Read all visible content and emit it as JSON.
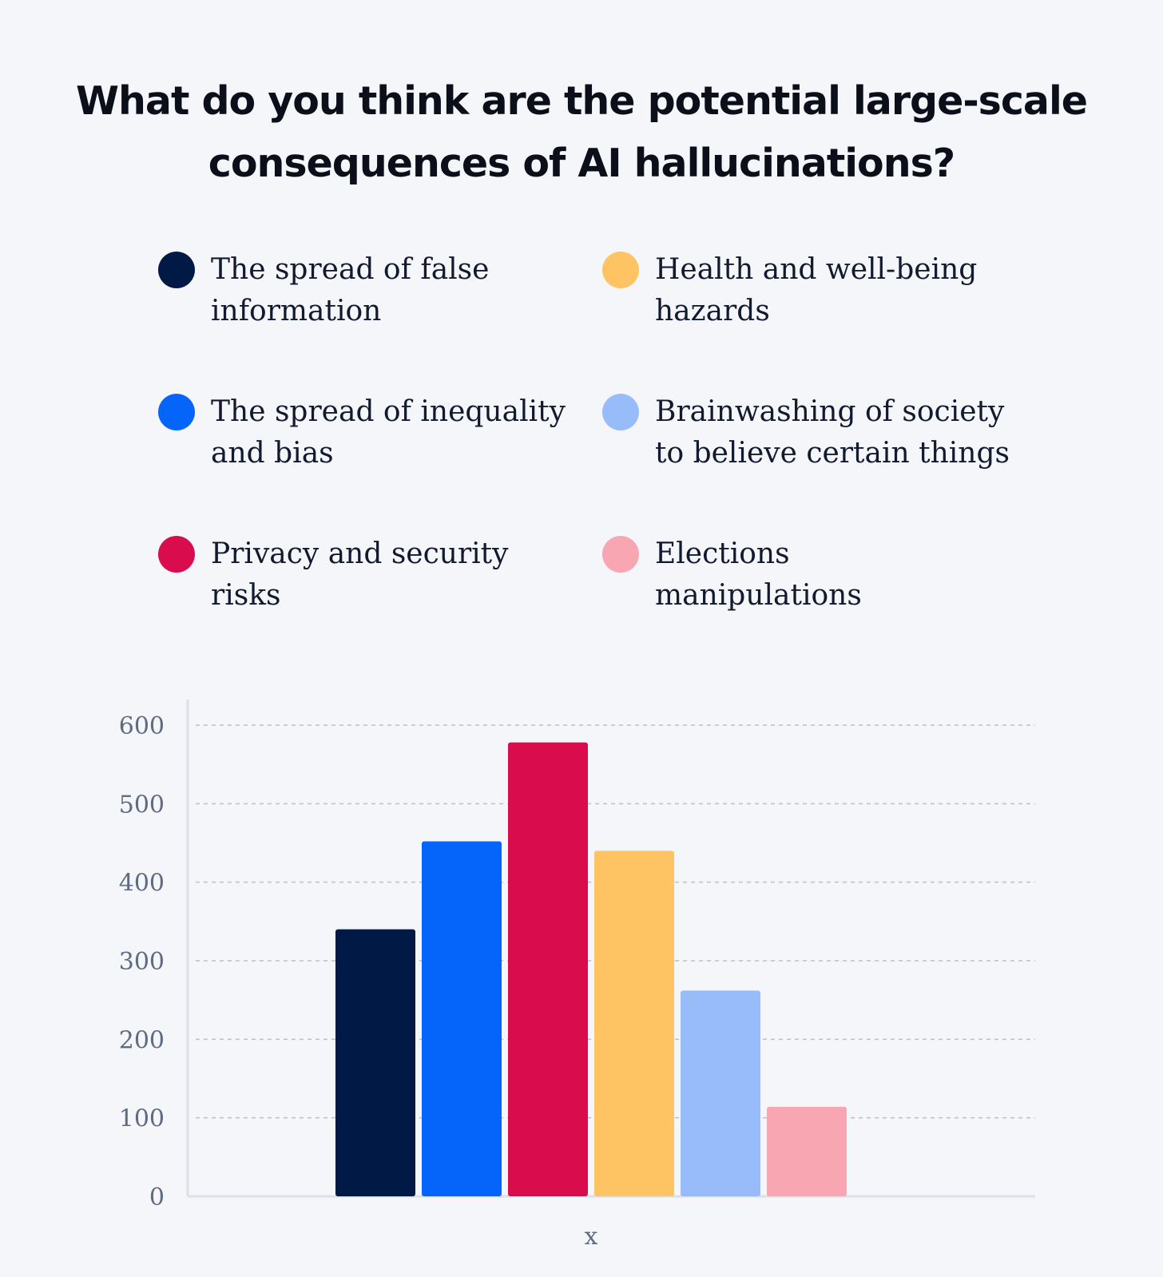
{
  "colors": {
    "background": "#f5f6f9",
    "grid": "#b9bfcc",
    "axis": "#dde0e8"
  },
  "chart_data": {
    "type": "bar",
    "title": "What do you think are the potential large-scale consequences of AI hallucinations?",
    "title_lines": [
      "What do you think are the potential large-scale",
      "consequences of AI hallucinations?"
    ],
    "xlabel": "x",
    "ylabel": "",
    "ylim": [
      0,
      600
    ],
    "yticks": [
      0,
      100,
      200,
      300,
      400,
      500,
      600
    ],
    "grid": true,
    "legend_position": "top",
    "series": [
      {
        "name": "The spread of false information",
        "name_lines": [
          "The spread of false",
          "information"
        ],
        "value": 340,
        "color": "#001a45"
      },
      {
        "name": "The spread of inequality and bias",
        "name_lines": [
          "The spread of inequality",
          "and bias"
        ],
        "value": 452,
        "color": "#0565fb"
      },
      {
        "name": "Privacy and security risks",
        "name_lines": [
          "Privacy and security",
          "risks"
        ],
        "value": 578,
        "color": "#d90d4e"
      },
      {
        "name": "Health and well-being hazards",
        "name_lines": [
          "Health and well-being",
          "hazards"
        ],
        "value": 440,
        "color": "#fec363"
      },
      {
        "name": "Brainwashing of society to believe certain things",
        "name_lines": [
          "Brainwashing of society",
          "to believe certain things"
        ],
        "value": 262,
        "color": "#98bcfa"
      },
      {
        "name": "Elections manipulations",
        "name_lines": [
          "Elections",
          "manipulations"
        ],
        "value": 114,
        "color": "#f8a6b1"
      }
    ]
  }
}
